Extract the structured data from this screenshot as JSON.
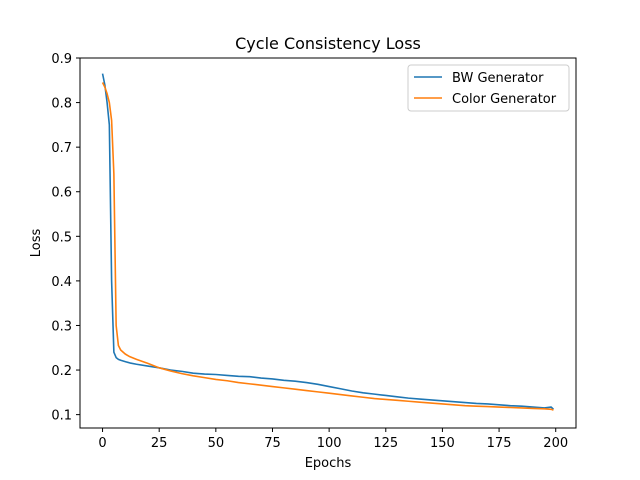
{
  "chart_data": {
    "type": "line",
    "title": "Cycle Consistency Loss",
    "xlabel": "Epochs",
    "ylabel": "Loss",
    "xlim": [
      -9.95,
      208.95
    ],
    "ylim": [
      0.07,
      0.9
    ],
    "xticks": [
      0,
      25,
      50,
      75,
      100,
      125,
      150,
      175,
      200
    ],
    "yticks": [
      0.1,
      0.2,
      0.3,
      0.4,
      0.5,
      0.6,
      0.7,
      0.8,
      0.9
    ],
    "grid": false,
    "legend": "top-right",
    "series": [
      {
        "name": "BW Generator",
        "color": "#1f77b4",
        "x": [
          0,
          1,
          2,
          3,
          4,
          5,
          6,
          7,
          8,
          10,
          12,
          15,
          20,
          25,
          30,
          35,
          40,
          45,
          50,
          55,
          60,
          65,
          70,
          75,
          80,
          85,
          90,
          95,
          100,
          105,
          110,
          115,
          120,
          125,
          130,
          135,
          140,
          145,
          150,
          155,
          160,
          165,
          170,
          175,
          180,
          185,
          190,
          195,
          198,
          199
        ],
        "y": [
          0.865,
          0.84,
          0.8,
          0.75,
          0.4,
          0.24,
          0.228,
          0.224,
          0.222,
          0.219,
          0.216,
          0.213,
          0.209,
          0.205,
          0.2,
          0.197,
          0.193,
          0.191,
          0.19,
          0.188,
          0.186,
          0.185,
          0.182,
          0.18,
          0.177,
          0.175,
          0.172,
          0.168,
          0.163,
          0.158,
          0.153,
          0.149,
          0.146,
          0.143,
          0.14,
          0.137,
          0.135,
          0.133,
          0.131,
          0.129,
          0.127,
          0.125,
          0.124,
          0.122,
          0.12,
          0.119,
          0.117,
          0.115,
          0.117,
          0.112
        ]
      },
      {
        "name": "Color Generator",
        "color": "#ff7f0e",
        "x": [
          0,
          1,
          2,
          3,
          4,
          5,
          6,
          7,
          8,
          10,
          12,
          15,
          20,
          25,
          30,
          35,
          40,
          45,
          50,
          55,
          60,
          65,
          70,
          75,
          80,
          85,
          90,
          95,
          100,
          105,
          110,
          115,
          120,
          125,
          130,
          135,
          140,
          145,
          150,
          155,
          160,
          165,
          170,
          175,
          180,
          185,
          190,
          195,
          198,
          199
        ],
        "y": [
          0.845,
          0.835,
          0.82,
          0.8,
          0.76,
          0.64,
          0.3,
          0.255,
          0.245,
          0.236,
          0.23,
          0.224,
          0.215,
          0.205,
          0.198,
          0.192,
          0.187,
          0.183,
          0.179,
          0.176,
          0.172,
          0.169,
          0.166,
          0.163,
          0.16,
          0.157,
          0.154,
          0.151,
          0.148,
          0.145,
          0.142,
          0.139,
          0.136,
          0.134,
          0.132,
          0.13,
          0.128,
          0.126,
          0.124,
          0.122,
          0.12,
          0.119,
          0.118,
          0.117,
          0.116,
          0.115,
          0.114,
          0.113,
          0.112,
          0.11
        ]
      }
    ]
  }
}
